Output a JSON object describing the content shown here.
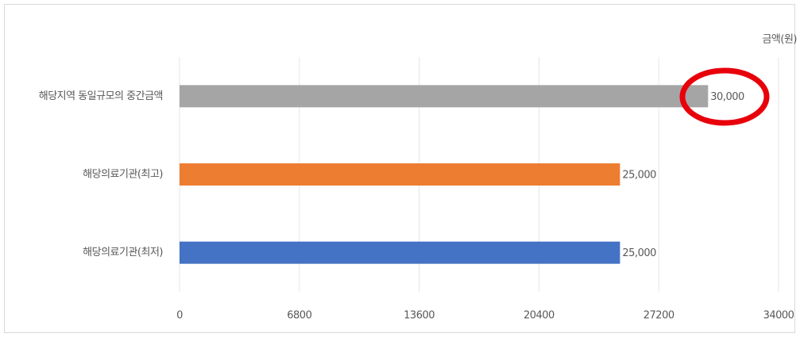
{
  "chart_data": {
    "type": "barh",
    "categories": [
      "해당지역 동일규모의 중간금액",
      "해당의료기관(최고)",
      "해당의료기관(최저)"
    ],
    "values": [
      30000,
      25000,
      25000
    ],
    "value_labels": [
      "30,000",
      "25,000",
      "25,000"
    ],
    "colors": [
      "#a5a5a5",
      "#ed7d31",
      "#4472c4"
    ],
    "x_label": "금액(원)",
    "xlim": [
      0,
      34000
    ],
    "xticks": [
      0,
      6800,
      13600,
      20400,
      27200,
      34000
    ],
    "grid": true
  }
}
